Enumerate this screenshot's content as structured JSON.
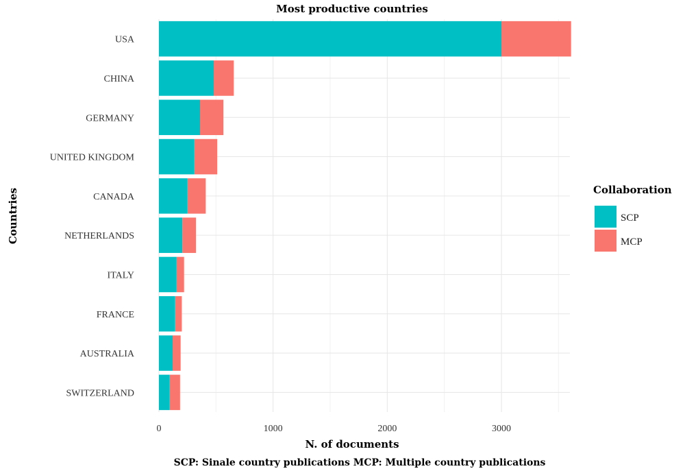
{
  "chart_data": {
    "type": "bar",
    "orientation": "horizontal",
    "stacked": true,
    "title": "Most productive countries",
    "xlabel": "N. of documents",
    "ylabel": "Countries",
    "categories": [
      "USA",
      "CHINA",
      "GERMANY",
      "UNITED KINGDOM",
      "CANADA",
      "NETHERLANDS",
      "ITALY",
      "FRANCE",
      "AUSTRALIA",
      "SWITZERLAND"
    ],
    "series": [
      {
        "name": "SCP",
        "color": "#00bfc4",
        "values": [
          3000,
          480,
          360,
          310,
          250,
          205,
          155,
          140,
          120,
          90
        ]
      },
      {
        "name": "MCP",
        "color": "#f8766d",
        "values": [
          610,
          175,
          205,
          200,
          160,
          120,
          65,
          60,
          70,
          95
        ]
      }
    ],
    "xlim": [
      0,
      3600
    ],
    "xticks": [
      0,
      1000,
      2000,
      3000
    ],
    "grid": true,
    "legend": {
      "title": "Collaboration",
      "position": "right"
    },
    "caption": "SCP: Sinale country publications MCP: Multiple country publications"
  }
}
